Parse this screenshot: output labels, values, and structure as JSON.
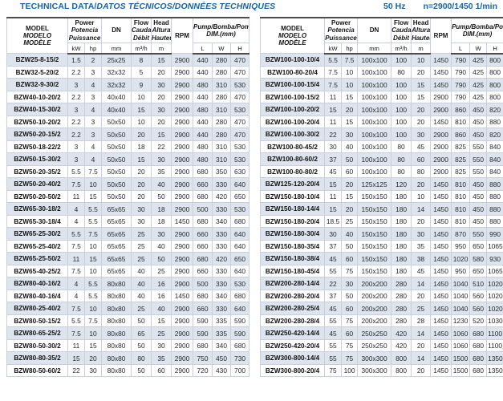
{
  "page": {
    "title_main": "TECHNICAL DATA/",
    "title_italic": "DATOS TÉCNICOS/DONNÉES TECHNIQUES",
    "frequency": "50 Hz",
    "speed": "n=2900/1450 1/min"
  },
  "colors": {
    "accent_blue": "#1663ab",
    "row_shade": "#dde4ee",
    "cell_border": "#c9d0db",
    "heavy_border": "#4c4c4c"
  },
  "columns": {
    "model": {
      "l1": "MODEL",
      "l2": "MODELO",
      "l3": "MODÈLE"
    },
    "power": {
      "l1": "Power",
      "l2": "Potencia",
      "l3": "Puissance"
    },
    "dn": "DN",
    "flow": {
      "l1": "Flow",
      "l2": "Caudal",
      "l3": "Débit"
    },
    "head": {
      "l1": "Head",
      "l2": "Altura",
      "l3": "Hauteur"
    },
    "rpm": "RPM",
    "dim": {
      "l1": "Pump/Bomba/Pompe",
      "l2": "DIM.(mm)"
    },
    "units": {
      "kw": "kW",
      "hp": "hp",
      "mm": "mm",
      "m3h": "m³/h",
      "m": "m",
      "L": "L",
      "W": "W",
      "H": "H"
    }
  },
  "tables": [
    {
      "rows": [
        [
          "BZW25-8-15/2",
          "1.5",
          "2",
          "25x25",
          "8",
          "15",
          "2900",
          "440",
          "280",
          "470"
        ],
        [
          "BZW32-5-20/2",
          "2.2",
          "3",
          "32x32",
          "5",
          "20",
          "2900",
          "440",
          "280",
          "470"
        ],
        [
          "BZW32-9-30/2",
          "3",
          "4",
          "32x32",
          "9",
          "30",
          "2900",
          "480",
          "310",
          "530"
        ],
        [
          "BZW40-10-20/2",
          "2.2",
          "3",
          "40x40",
          "10",
          "20",
          "2900",
          "440",
          "280",
          "470"
        ],
        [
          "BZW40-15-30/2",
          "3",
          "4",
          "40x40",
          "15",
          "30",
          "2900",
          "480",
          "310",
          "530"
        ],
        [
          "BZW50-10-20/2",
          "2.2",
          "3",
          "50x50",
          "10",
          "20",
          "2900",
          "440",
          "280",
          "470"
        ],
        [
          "BZW50-20-15/2",
          "2.2",
          "3",
          "50x50",
          "20",
          "15",
          "2900",
          "440",
          "280",
          "470"
        ],
        [
          "BZW50-18-22/2",
          "3",
          "4",
          "50x50",
          "18",
          "22",
          "2900",
          "480",
          "310",
          "530"
        ],
        [
          "BZW50-15-30/2",
          "3",
          "4",
          "50x50",
          "15",
          "30",
          "2900",
          "480",
          "310",
          "530"
        ],
        [
          "BZW50-20-35/2",
          "5.5",
          "7.5",
          "50x50",
          "20",
          "35",
          "2900",
          "680",
          "350",
          "630"
        ],
        [
          "BZW50-20-40/2",
          "7.5",
          "10",
          "50x50",
          "20",
          "40",
          "2900",
          "660",
          "330",
          "640"
        ],
        [
          "BZW50-20-50/2",
          "11",
          "15",
          "50x50",
          "20",
          "50",
          "2900",
          "680",
          "420",
          "650"
        ],
        [
          "BZW65-30-18/2",
          "4",
          "5.5",
          "65x65",
          "30",
          "18",
          "2900",
          "500",
          "330",
          "530"
        ],
        [
          "BZW65-30-18/4",
          "4",
          "5.5",
          "65x65",
          "30",
          "18",
          "1450",
          "680",
          "340",
          "680"
        ],
        [
          "BZW65-25-30/2",
          "5.5",
          "7.5",
          "65x65",
          "25",
          "30",
          "2900",
          "660",
          "330",
          "640"
        ],
        [
          "BZW65-25-40/2",
          "7.5",
          "10",
          "65x65",
          "25",
          "40",
          "2900",
          "660",
          "330",
          "640"
        ],
        [
          "BZW65-25-50/2",
          "11",
          "15",
          "65x65",
          "25",
          "50",
          "2900",
          "680",
          "420",
          "650"
        ],
        [
          "BZW65-40-25/2",
          "7.5",
          "10",
          "65x65",
          "40",
          "25",
          "2900",
          "660",
          "330",
          "640"
        ],
        [
          "BZW80-40-16/2",
          "4",
          "5.5",
          "80x80",
          "40",
          "16",
          "2900",
          "500",
          "330",
          "530"
        ],
        [
          "BZW80-40-16/4",
          "4",
          "5.5",
          "80x80",
          "40",
          "16",
          "1450",
          "680",
          "340",
          "680"
        ],
        [
          "BZW80-25-40/2",
          "7.5",
          "10",
          "80x80",
          "25",
          "40",
          "2900",
          "660",
          "330",
          "640"
        ],
        [
          "BZW80-50-15/2",
          "5.5",
          "7.5",
          "80x80",
          "50",
          "15",
          "2900",
          "590",
          "335",
          "590"
        ],
        [
          "BZW80-65-25/2",
          "7.5",
          "10",
          "80x80",
          "65",
          "25",
          "2900",
          "590",
          "335",
          "590"
        ],
        [
          "BZW80-50-30/2",
          "11",
          "15",
          "80x80",
          "50",
          "30",
          "2900",
          "680",
          "340",
          "680"
        ],
        [
          "BZW80-80-35/2",
          "15",
          "20",
          "80x80",
          "80",
          "35",
          "2900",
          "750",
          "450",
          "730"
        ],
        [
          "BZW80-50-60/2",
          "22",
          "30",
          "80x80",
          "50",
          "60",
          "2900",
          "720",
          "430",
          "700"
        ]
      ]
    },
    {
      "rows": [
        [
          "BZW100-100-10/4",
          "5.5",
          "7.5",
          "100x100",
          "100",
          "10",
          "1450",
          "790",
          "425",
          "800"
        ],
        [
          "BZW100-80-20/4",
          "7.5",
          "10",
          "100x100",
          "80",
          "20",
          "1450",
          "790",
          "425",
          "800"
        ],
        [
          "BZW100-100-15/4",
          "7.5",
          "10",
          "100x100",
          "100",
          "15",
          "1450",
          "790",
          "425",
          "800"
        ],
        [
          "BZW100-100-15/2",
          "11",
          "15",
          "100x100",
          "100",
          "15",
          "2900",
          "790",
          "425",
          "800"
        ],
        [
          "BZW100-100-20/2",
          "15",
          "20",
          "100x100",
          "100",
          "20",
          "2900",
          "860",
          "450",
          "820"
        ],
        [
          "BZW100-100-20/4",
          "11",
          "15",
          "100x100",
          "100",
          "20",
          "1450",
          "810",
          "450",
          "880"
        ],
        [
          "BZW100-100-30/2",
          "22",
          "30",
          "100x100",
          "100",
          "30",
          "2900",
          "860",
          "450",
          "820"
        ],
        [
          "BZW100-80-45/2",
          "30",
          "40",
          "100x100",
          "80",
          "45",
          "2900",
          "825",
          "550",
          "840"
        ],
        [
          "BZW100-80-60/2",
          "37",
          "50",
          "100x100",
          "80",
          "60",
          "2900",
          "825",
          "550",
          "840"
        ],
        [
          "BZW100-80-80/2",
          "45",
          "60",
          "100x100",
          "80",
          "80",
          "2900",
          "825",
          "550",
          "840"
        ],
        [
          "BZW125-120-20/4",
          "15",
          "20",
          "125x125",
          "120",
          "20",
          "1450",
          "810",
          "450",
          "880"
        ],
        [
          "BZW150-180-10/4",
          "11",
          "15",
          "150x150",
          "180",
          "10",
          "1450",
          "810",
          "450",
          "880"
        ],
        [
          "BZW150-180-14/4",
          "15",
          "20",
          "150x150",
          "180",
          "14",
          "1450",
          "810",
          "450",
          "880"
        ],
        [
          "BZW150-180-20/4",
          "18.5",
          "25",
          "150x150",
          "180",
          "20",
          "1450",
          "810",
          "450",
          "880"
        ],
        [
          "BZW150-180-30/4",
          "30",
          "40",
          "150x150",
          "180",
          "30",
          "1450",
          "870",
          "550",
          "990"
        ],
        [
          "BZW150-180-35/4",
          "37",
          "50",
          "150x150",
          "180",
          "35",
          "1450",
          "950",
          "650",
          "1065"
        ],
        [
          "BZW150-180-38/4",
          "45",
          "60",
          "150x150",
          "180",
          "38",
          "1450",
          "1020",
          "580",
          "930"
        ],
        [
          "BZW150-180-45/4",
          "55",
          "75",
          "150x150",
          "180",
          "45",
          "1450",
          "950",
          "650",
          "1065"
        ],
        [
          "BZW200-280-14/4",
          "22",
          "30",
          "200x200",
          "280",
          "14",
          "1450",
          "1040",
          "510",
          "1020"
        ],
        [
          "BZW200-280-20/4",
          "37",
          "50",
          "200x200",
          "280",
          "20",
          "1450",
          "1040",
          "560",
          "1020"
        ],
        [
          "BZW200-280-25/4",
          "45",
          "60",
          "200x200",
          "280",
          "25",
          "1450",
          "1040",
          "560",
          "1020"
        ],
        [
          "BZW200-280-28/4",
          "55",
          "75",
          "200x200",
          "280",
          "28",
          "1450",
          "1230",
          "520",
          "1030"
        ],
        [
          "BZW250-420-14/4",
          "45",
          "60",
          "250x250",
          "420",
          "14",
          "1450",
          "1060",
          "680",
          "1100"
        ],
        [
          "BZW250-420-20/4",
          "55",
          "75",
          "250x250",
          "420",
          "20",
          "1450",
          "1060",
          "680",
          "1100"
        ],
        [
          "BZW300-800-14/4",
          "55",
          "75",
          "300x300",
          "800",
          "14",
          "1450",
          "1500",
          "680",
          "1350"
        ],
        [
          "BZW300-800-20/4",
          "75",
          "100",
          "300x300",
          "800",
          "20",
          "1450",
          "1500",
          "680",
          "1350"
        ]
      ]
    }
  ]
}
